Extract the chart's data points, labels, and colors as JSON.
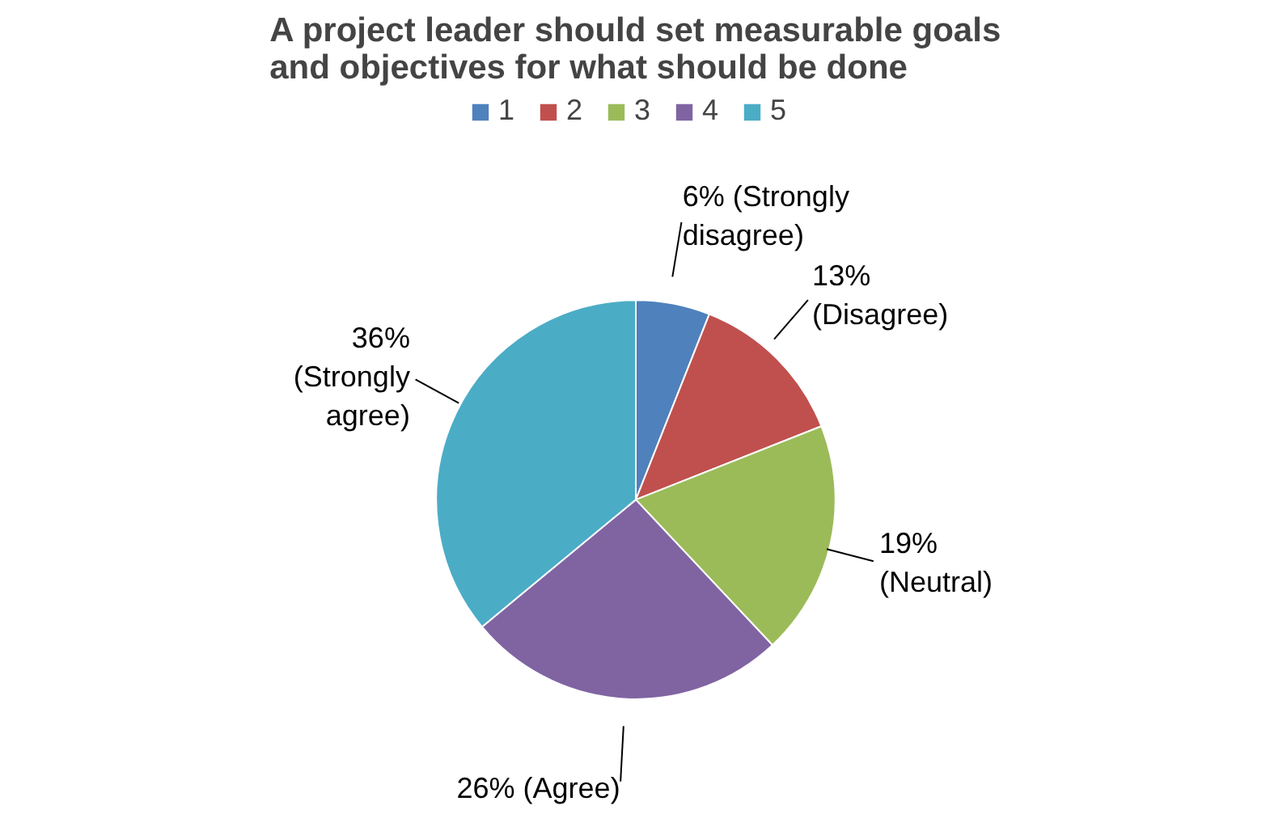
{
  "chart_data": {
    "type": "pie",
    "title": "A project leader should set measurable goals and objectives for what should be done",
    "categories": [
      "1",
      "2",
      "3",
      "4",
      "5"
    ],
    "values": [
      6,
      13,
      19,
      26,
      36
    ],
    "colors": [
      "#4f81bd",
      "#c0504d",
      "#9bbb59",
      "#8064a2",
      "#4bacc6"
    ],
    "value_labels": [
      "6% (Strongly\ndisagree)",
      "13%\n(Disagree)",
      "19%\n(Neutral)",
      "26% (Agree)",
      "36%\n(Strongly\nagree)"
    ],
    "legend": "top"
  }
}
